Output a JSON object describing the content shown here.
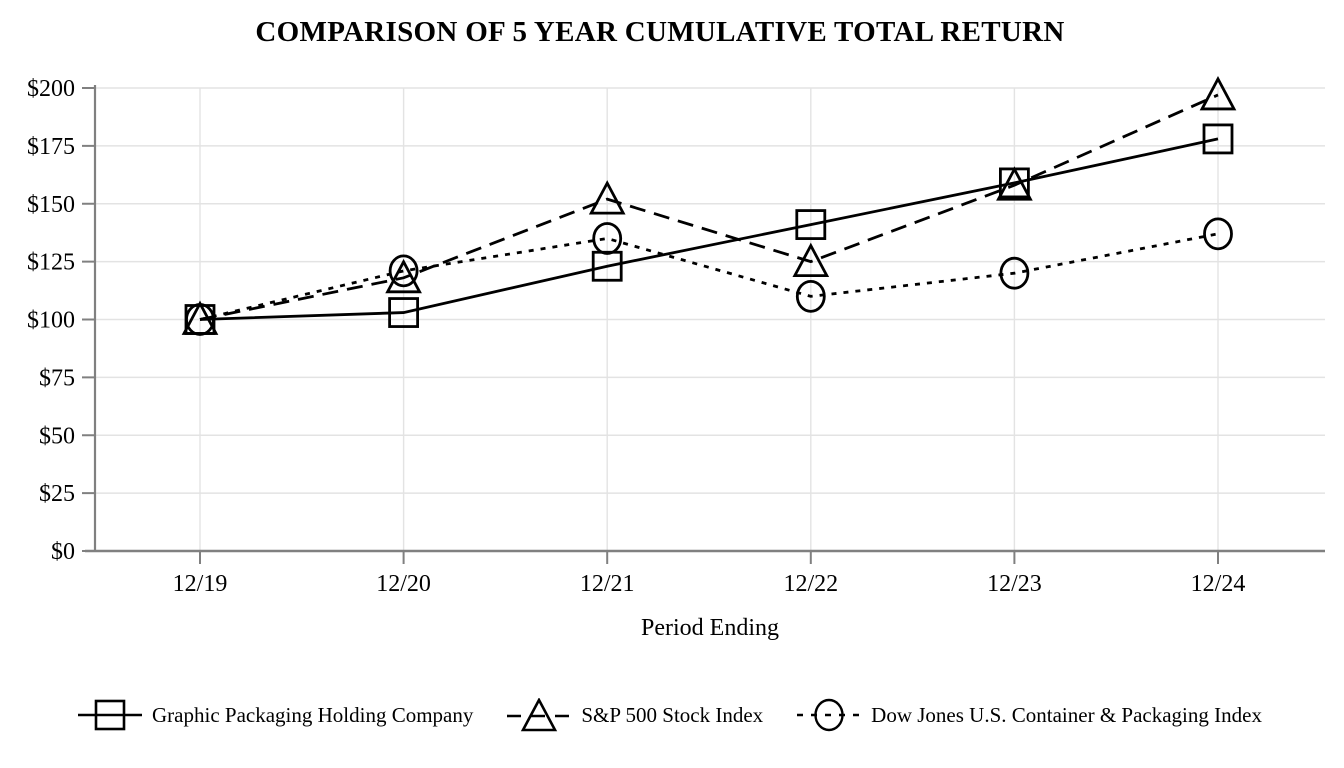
{
  "chart_data": {
    "type": "line",
    "title": "COMPARISON OF 5 YEAR CUMULATIVE TOTAL RETURN",
    "xlabel": "Period Ending",
    "ylabel": "",
    "categories": [
      "12/19",
      "12/20",
      "12/21",
      "12/22",
      "12/23",
      "12/24"
    ],
    "ylim": [
      0,
      200
    ],
    "grid": true,
    "legend_position": "bottom",
    "yticks": [
      {
        "label": "$0",
        "value": 0
      },
      {
        "label": "$25",
        "value": 25
      },
      {
        "label": "$50",
        "value": 50
      },
      {
        "label": "$75",
        "value": 75
      },
      {
        "label": "$100",
        "value": 100
      },
      {
        "label": "$125",
        "value": 125
      },
      {
        "label": "$150",
        "value": 150
      },
      {
        "label": "$175",
        "value": 175
      },
      {
        "label": "$200",
        "value": 200
      }
    ],
    "series": [
      {
        "name": "Graphic Packaging Holding Company",
        "marker": "square",
        "line_style": "solid",
        "color": "#000000",
        "values": [
          100,
          103,
          123,
          141,
          159,
          178
        ]
      },
      {
        "name": "S&P 500 Stock Index",
        "marker": "triangle",
        "line_style": "long-dash",
        "color": "#000000",
        "values": [
          100,
          118,
          152,
          125,
          158,
          197
        ]
      },
      {
        "name": "Dow Jones U.S. Container & Packaging Index",
        "marker": "circle",
        "line_style": "short-dash",
        "color": "#000000",
        "values": [
          100,
          121,
          135,
          110,
          120,
          137
        ]
      }
    ],
    "grid_color": "#e3e3e3",
    "axis_color": "#808080",
    "series_color": "#000000"
  }
}
